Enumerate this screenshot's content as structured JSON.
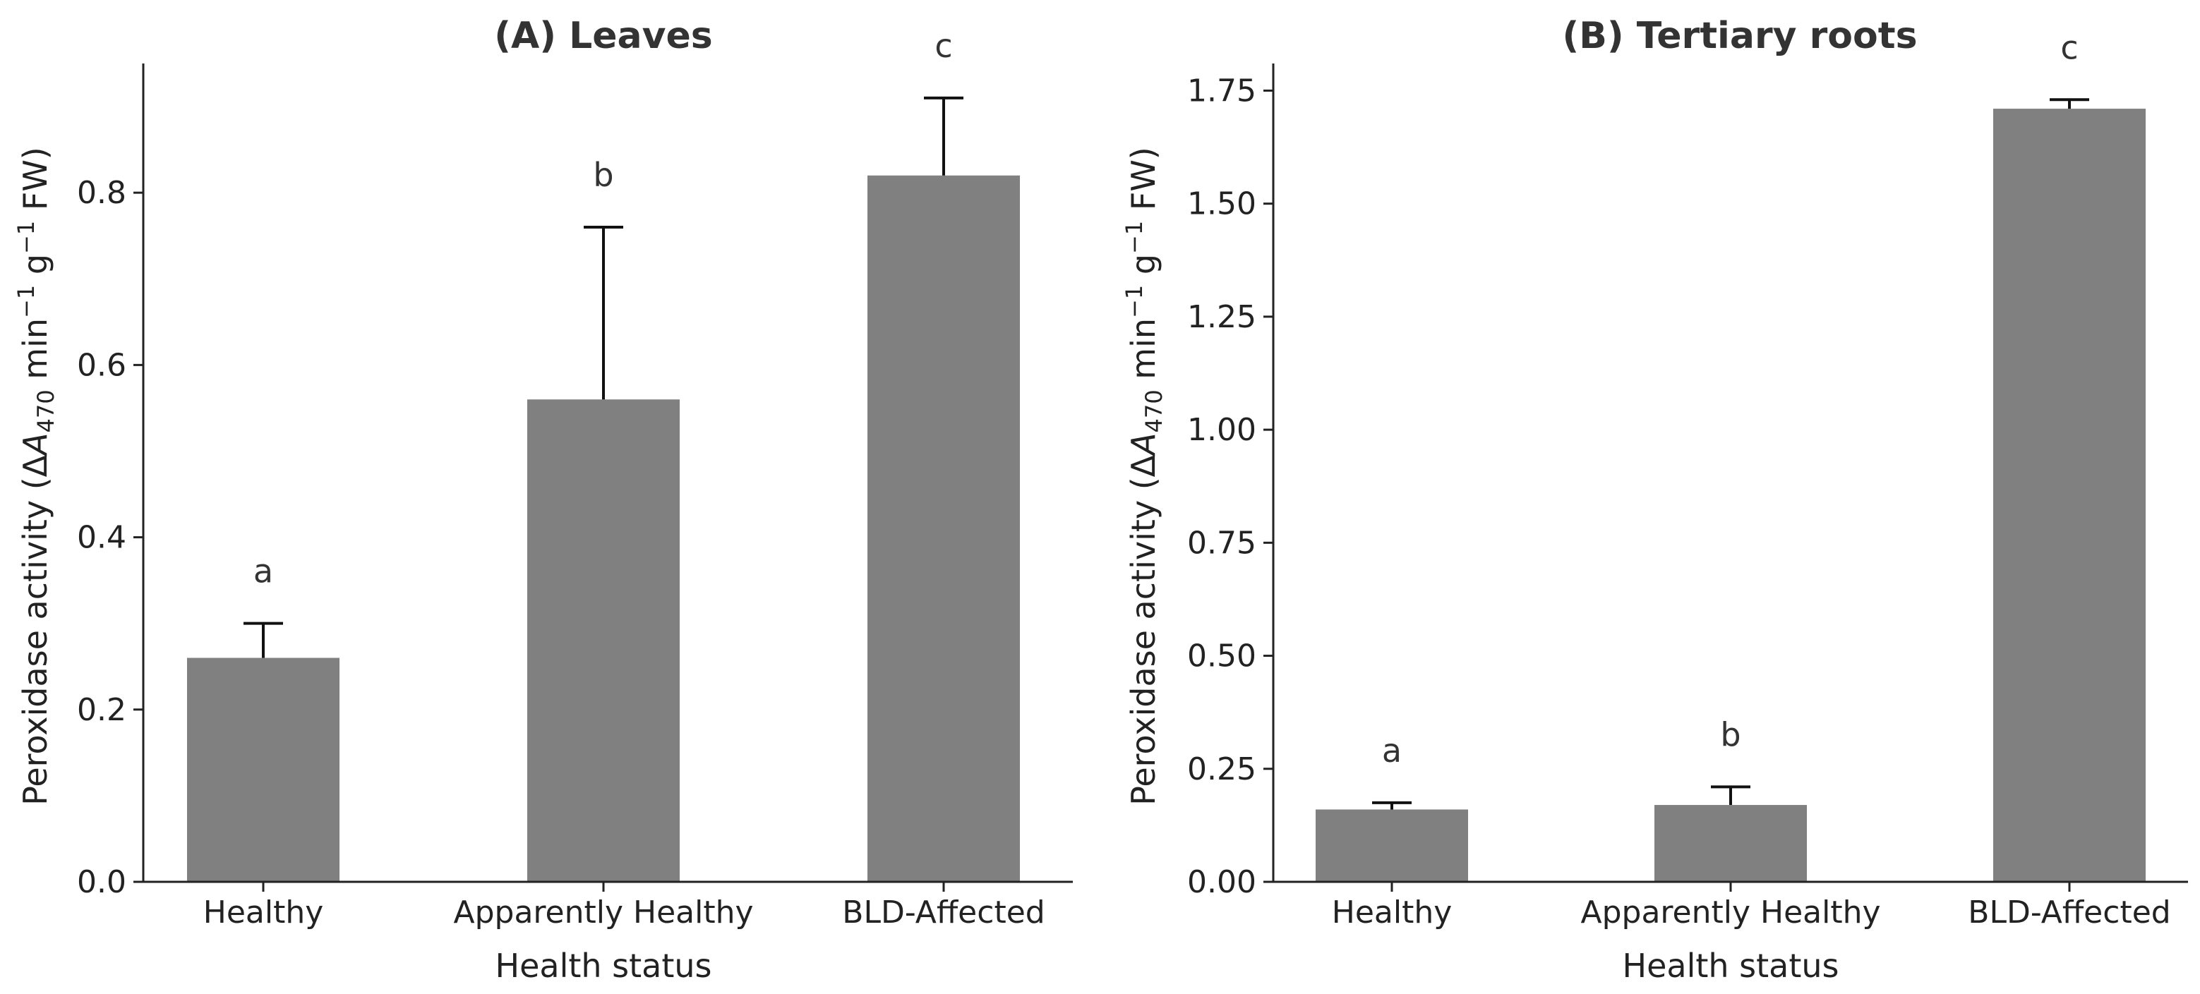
{
  "chart_data": [
    {
      "type": "bar",
      "title": "(A) Leaves",
      "xlabel": "Health status",
      "ylabel": "Peroxidase activity (ΔA₄₇₀ min⁻¹ g⁻¹ FW)",
      "ylabel_parts": {
        "pre": "Peroxidase activity (Δ",
        "italic": "A",
        "sub": "470",
        "mid1": " min",
        "sup1": "−1",
        "mid2": " g",
        "sup2": "−1",
        "post": " FW)"
      },
      "categories": [
        "Healthy",
        "Apparently Healthy",
        "BLD-Affected"
      ],
      "values": [
        0.26,
        0.56,
        0.82
      ],
      "errors": [
        0.04,
        0.2,
        0.09
      ],
      "letters": [
        "a",
        "b",
        "c"
      ],
      "ylim": [
        0,
        0.95
      ],
      "yticks": [
        0.0,
        0.2,
        0.4,
        0.6,
        0.8
      ],
      "ytick_labels": [
        "0.0",
        "0.2",
        "0.4",
        "0.6",
        "0.8"
      ],
      "bar_color": "#808080"
    },
    {
      "type": "bar",
      "title": "(B) Tertiary roots",
      "xlabel": "Health status",
      "ylabel": "Peroxidase activity (ΔA₄₇₀ min⁻¹ g⁻¹ FW)",
      "ylabel_parts": {
        "pre": "Peroxidase activity (Δ",
        "italic": "A",
        "sub": "470",
        "mid1": " min",
        "sup1": "−1",
        "mid2": " g",
        "sup2": "−1",
        "post": " FW)"
      },
      "categories": [
        "Healthy",
        "Apparently Healthy",
        "BLD-Affected"
      ],
      "values": [
        0.16,
        0.17,
        1.71
      ],
      "errors": [
        0.015,
        0.04,
        0.02
      ],
      "letters": [
        "a",
        "b",
        "c"
      ],
      "ylim": [
        0,
        1.81
      ],
      "yticks": [
        0.0,
        0.25,
        0.5,
        0.75,
        1.0,
        1.25,
        1.5,
        1.75
      ],
      "ytick_labels": [
        "0.00",
        "0.25",
        "0.50",
        "0.75",
        "1.00",
        "1.25",
        "1.50",
        "1.75"
      ],
      "bar_color": "#808080"
    }
  ]
}
